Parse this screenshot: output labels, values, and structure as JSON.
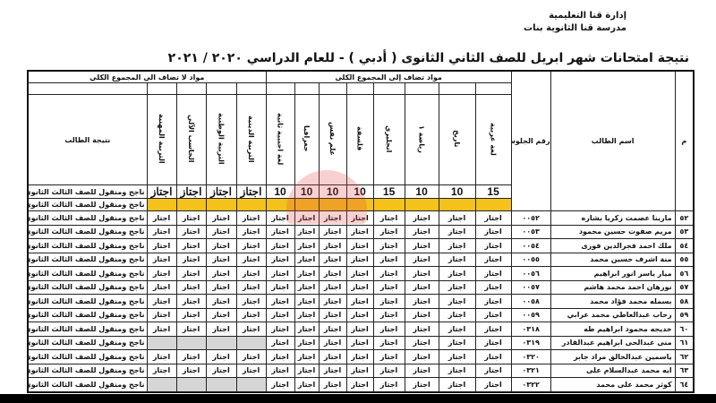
{
  "header": {
    "org_line1": "إدارة قنا التعليمية",
    "org_line2": "مدرسة قنا الثانوية بنات",
    "title": "نتيجة امتحانات شهر ابريل للصف الثاني الثانوى ( أدبي ) - للعام الدراسي   ٢٠٢٠ / ٢٠٢١"
  },
  "table": {
    "col_index": "م",
    "col_name": "اسم الطالب",
    "col_seat": "رقم الجلوس",
    "group_added": "مواد تضاف إلى المجموع الكلى",
    "group_not_added": "مواد لا تضاف الي المجموع الكلي",
    "col_result": "نتيجة الطالب",
    "added_subjects": [
      {
        "label": "لغة عربية",
        "max": "15"
      },
      {
        "label": "تاريخ",
        "max": "10"
      },
      {
        "label": "رياضة ١",
        "max": "10"
      },
      {
        "label": "انجليزي",
        "max": "15"
      },
      {
        "label": "فلسفة",
        "max": "10"
      },
      {
        "label": "علم نفس",
        "max": "10"
      },
      {
        "label": "جغرافيا",
        "max": "10"
      },
      {
        "label": "لغة اجنبية ثانية",
        "max": "10"
      }
    ],
    "other_subjects": [
      {
        "label": "التربية الدينية",
        "max": "اجتاز"
      },
      {
        "label": "التربية الوطنية",
        "max": "اجتاز"
      },
      {
        "label": "الحاسب الآلي",
        "max": "اجتاز"
      },
      {
        "label": "التربية المهنية",
        "max": "اجتاز"
      }
    ],
    "header_result": "ناجح ومنقول للصف الثالث الثانوى",
    "yellow_result": "ناجح ومنقول للصف الثالث الثانوى",
    "highlight_color": "#f4c21a",
    "rows": [
      {
        "num": "٥٢",
        "name": "مارينا عصمت زكريا بشاره",
        "seat": "٠٠٥٢",
        "grade": "اجتاز",
        "other": "اجتاز",
        "result": "ناجح ومنقول للصف الثالث الثانوى"
      },
      {
        "num": "٥٣",
        "name": "مريم صفوت حسين محمود",
        "seat": "٠٠٥٣",
        "grade": "اجتاز",
        "other": "اجتاز",
        "result": "ناجح ومنقول للصف الثالث الثانوى"
      },
      {
        "num": "٥٤",
        "name": "ملك احمد فجرالدين فوزى",
        "seat": "٠٠٥٤",
        "grade": "اجتاز",
        "other": "اجتاز",
        "result": "ناجح ومنقول للصف الثالث الثانوى"
      },
      {
        "num": "٥٥",
        "name": "منة اشرف حسين محمد",
        "seat": "٠٠٥٥",
        "grade": "اجتاز",
        "other": "اجتاز",
        "result": "ناجح ومنقول للصف الثالث الثانوى"
      },
      {
        "num": "٥٦",
        "name": "ميار ياسر انور ابراهيم",
        "seat": "٠٠٥٦",
        "grade": "اجتاز",
        "other": "اجتاز",
        "result": "ناجح ومنقول للصف الثالث الثانوى"
      },
      {
        "num": "٥٧",
        "name": "نورهان احمد محمد هاشم",
        "seat": "٠٠٥٧",
        "grade": "اجتاز",
        "other": "اجتاز",
        "result": "ناجح ومنقول للصف الثالث الثانوى"
      },
      {
        "num": "٥٨",
        "name": "بسمله محمد فؤاد محمد",
        "seat": "٠٠٥٨",
        "grade": "اجتاز",
        "other": "اجتاز",
        "result": "ناجح ومنقول للصف الثالث الثانوى"
      },
      {
        "num": "٥٩",
        "name": "رحاب عبدالعاطي محمد عرابي",
        "seat": "٠٠٥٩",
        "grade": "اجتاز",
        "other": "اجتاز",
        "result": "ناجح ومنقول للصف الثالث الثانوى"
      },
      {
        "num": "٦٠",
        "name": "خديجه محمود ابراهيم طه",
        "seat": "٠٣١٨",
        "grade": "اجتاز",
        "other": "اجتاز",
        "result": "ناجح ومنقول للصف الثالث الثانوى"
      },
      {
        "num": "٦١",
        "name": "منى عبدالحى ابراهيم عبدالقادر",
        "seat": "٠٣١٩",
        "grade": "اجتاز",
        "other": "",
        "result": "ناجح ومنقول للصف الثالث الثانوى"
      },
      {
        "num": "٦٢",
        "name": "ياسمين عبدالخالق مراد جابر",
        "seat": "٠٣٢٠",
        "grade": "اجتاز",
        "other": "اجتاز",
        "result": "ناجح ومنقول للصف الثالث الثانوى"
      },
      {
        "num": "٦٣",
        "name": "ايه محمد عبدالسلام على",
        "seat": "٠٣٢١",
        "grade": "اجتاز",
        "other": "اجتاز",
        "result": "ناجح ومنقول للصف الثالث الثانوى"
      },
      {
        "num": "٦٤",
        "name": "كوثر محمد على محمد",
        "seat": "٠٣٢٢",
        "grade": "اجتاز",
        "other": "",
        "result": "ناجح ومنقول للصف الثالث الثانوى"
      }
    ]
  }
}
